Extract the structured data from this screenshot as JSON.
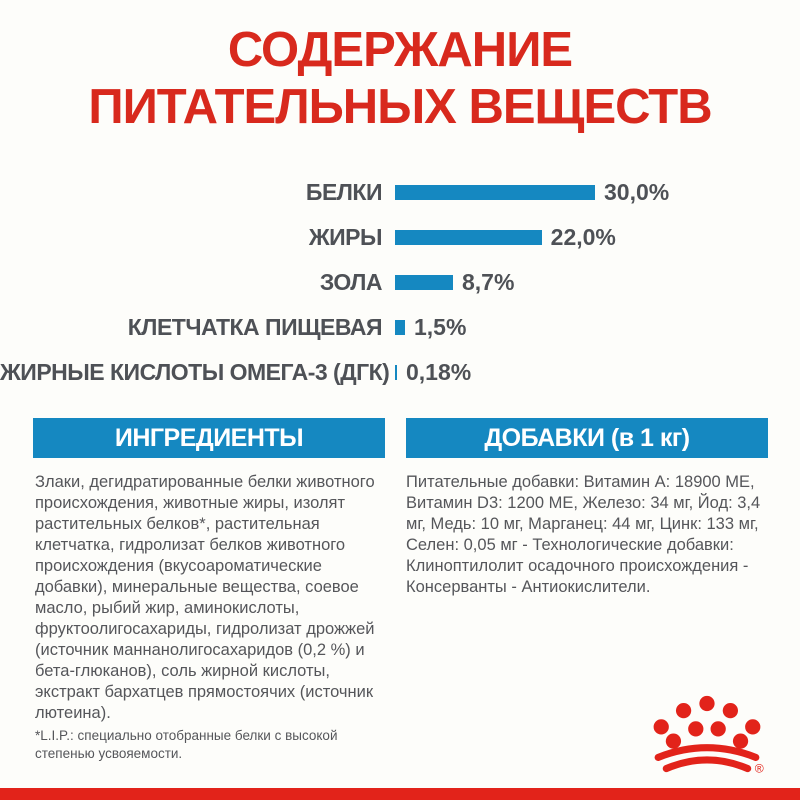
{
  "title": {
    "line1": "СОДЕРЖАНИЕ",
    "line2": "ПИТАТЕЛЬНЫХ ВЕЩЕСТВ"
  },
  "chart_data": {
    "type": "bar",
    "orientation": "horizontal",
    "categories": [
      "БЕЛКИ",
      "ЖИРЫ",
      "ЗОЛА",
      "КЛЕТЧАТКА ПИЩЕВАЯ",
      "ЖИРНЫЕ КИСЛОТЫ ОМЕГА-3 (ДГК)"
    ],
    "values": [
      30.0,
      22.0,
      8.7,
      1.5,
      0.18
    ],
    "value_labels": [
      "30,0%",
      "22,0%",
      "8,7%",
      "1,5%",
      "0,18%"
    ],
    "xlim": [
      0,
      30
    ],
    "bar_color": "#1588c1",
    "grid": false,
    "legend": false
  },
  "sections": {
    "ingredients": {
      "header": "ИНГРЕДИЕНТЫ",
      "body": "Злаки, дегидратированные белки животного происхождения, животные жиры, изолят растительных белков*, растительная клетчатка, гидролизат белков животного происхождения (вкусоароматические добавки), минеральные вещества, соевое масло, рыбий жир, аминокислоты, фруктоолигосахариды, гидролизат дрожжей (источник маннанолигосахаридов (0,2 %) и бета-глюканов), соль жирной кислоты, экстракт бархатцев прямостоячих (источник лютеина).",
      "footnote": "*L.I.P.: специально отобранные белки с высокой степенью усвояемости."
    },
    "additives": {
      "header": "ДОБАВКИ (в 1 кг)",
      "body": "Питательные добавки: Витамин A: 18900 ME, Витамин D3: 1200 ME, Железо: 34 мг, Йод: 3,4 мг, Медь: 10 мг, Марганец: 44 мг, Цинк: 133 мг, Селен: 0,05 мг - Технологические добавки: Клиноптилолит осадочного происхождения - Консерванты - Антиокислители."
    }
  },
  "brand": {
    "logo_name": "royal-canin-crown",
    "registered_mark": "®",
    "logo_color": "#e2231a"
  },
  "colors": {
    "title_red": "#d8291d",
    "accent_blue": "#1588c1",
    "text_gray": "#55565a",
    "stripe_red": "#e2231a"
  }
}
